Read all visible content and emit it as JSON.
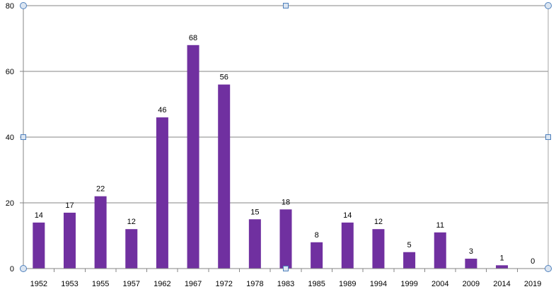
{
  "chart_data": {
    "type": "bar",
    "title": "",
    "xlabel": "",
    "ylabel": "",
    "categories": [
      "1952",
      "1953",
      "1955",
      "1957",
      "1962",
      "1967",
      "1972",
      "1978",
      "1983",
      "1985",
      "1989",
      "1994",
      "1999",
      "2004",
      "2009",
      "2014",
      "2019"
    ],
    "values": [
      14,
      17,
      22,
      12,
      46,
      68,
      56,
      15,
      18,
      8,
      14,
      12,
      5,
      11,
      3,
      1,
      0
    ],
    "data_labels": [
      "14",
      "17",
      "22",
      "12",
      "46",
      "68",
      "56",
      "15",
      "18",
      "8",
      "14",
      "12",
      "5",
      "11",
      "3",
      "1",
      "0"
    ],
    "ylim": [
      0,
      80
    ],
    "y_ticks": [
      0,
      20,
      40,
      60,
      80
    ],
    "y_tick_labels": [
      "0",
      "20",
      "40",
      "60",
      "80"
    ],
    "grid": true,
    "legend": "none",
    "colors": {
      "bar": "#7030A0",
      "grid": "#868686",
      "axis": "#868686",
      "plot_border": "#a6a6a6",
      "handle_stroke": "#4f81bd",
      "handle_fill": "#dbe5f1"
    }
  }
}
